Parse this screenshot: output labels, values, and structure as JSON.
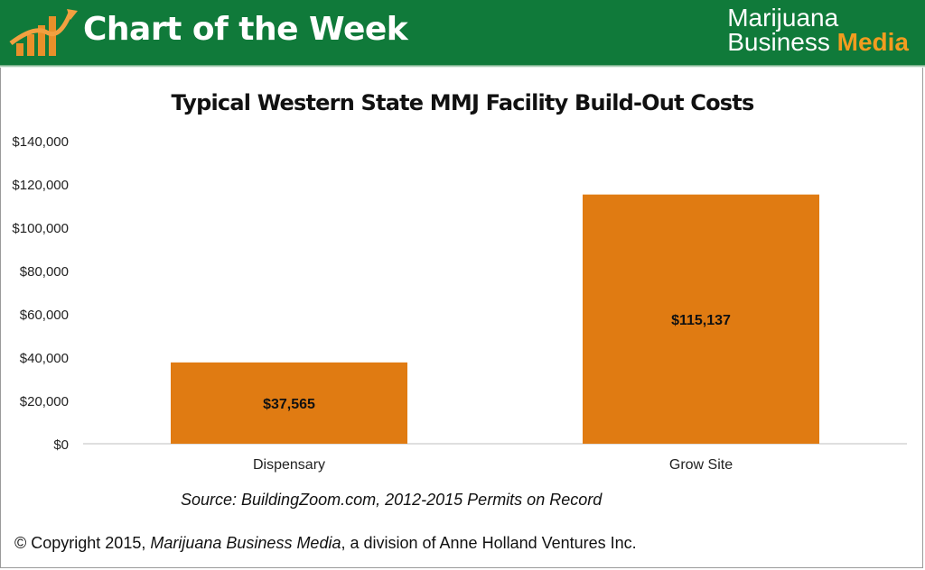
{
  "header": {
    "title": "Chart of the Week",
    "publisher_line1": "Marijuana",
    "publisher_line2_a": "Business",
    "publisher_line2_b": "Media",
    "colors": {
      "bar": "#107a3a",
      "accent": "#f39c1f",
      "logo": "#e8902a"
    },
    "logo_icon": "bar-chart-arrow-icon"
  },
  "chart_data": {
    "type": "bar",
    "title": "Typical Western State MMJ Facility Build-Out Costs",
    "categories": [
      "Dispensary",
      "Grow Site"
    ],
    "values": [
      37565,
      115137
    ],
    "data_labels": [
      "$37,565",
      "$115,137"
    ],
    "ylim": [
      0,
      140000
    ],
    "yticks": [
      "$0",
      "$20,000",
      "$40,000",
      "$60,000",
      "$80,000",
      "$100,000",
      "$120,000",
      "$140,000"
    ],
    "xlabel": "",
    "ylabel": "",
    "grid": false,
    "bar_color": "#e07b12"
  },
  "footer": {
    "source": "Source: BuildingZoom.com, 2012-2015 Permits on Record",
    "copyright_prefix": "© Copyright 2015, ",
    "copyright_em": "Marijuana Business Media",
    "copyright_suffix": ", a division of Anne Holland Ventures Inc."
  }
}
